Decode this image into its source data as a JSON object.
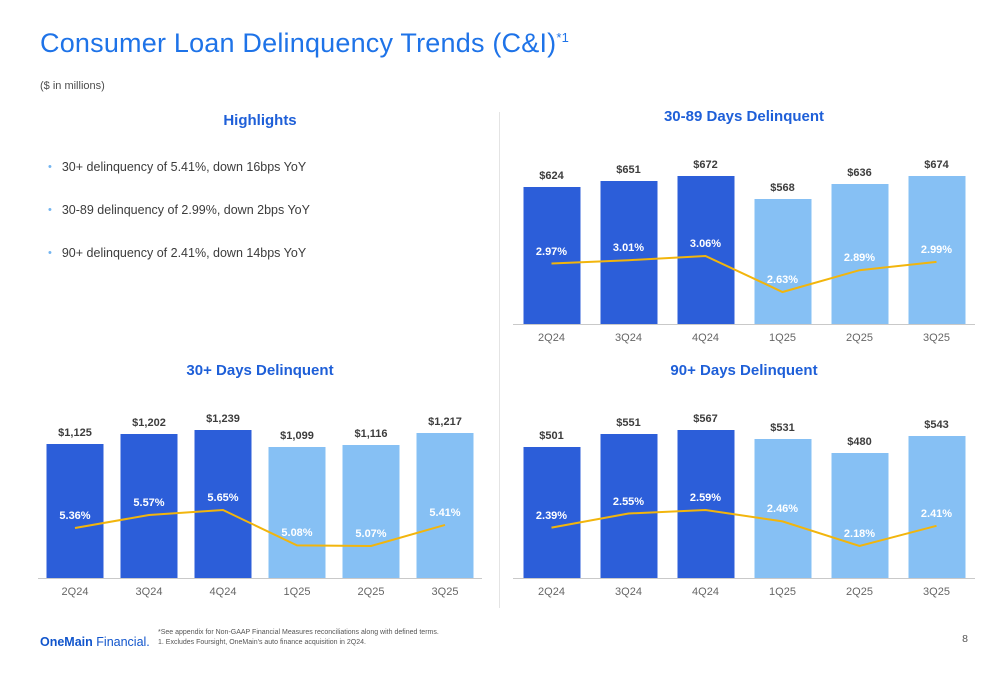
{
  "slide": {
    "title": "Consumer Loan Delinquency Trends (C&I)",
    "title_superscript": "*1",
    "subtitle": "($ in millions)",
    "page_number": "8"
  },
  "highlights": {
    "title": "Highlights",
    "bullets": [
      "30+ delinquency of 5.41%, down 16bps YoY",
      "30-89 delinquency of 2.99%, down 2bps YoY",
      "90+ delinquency of 2.41%, down 14bps YoY"
    ]
  },
  "footer": {
    "logo_text_bold": "OneMain",
    "logo_text_regular": "Financial.",
    "footnotes": [
      "*See appendix for Non-GAAP Financial Measures reconciliations along with defined terms.",
      "1. Excludes Foursight, OneMain's auto finance acquisition in 2Q24."
    ]
  },
  "colors": {
    "title_blue": "#1E73E8",
    "chart_title_blue": "#1E5FD8",
    "bar_dark_blue": "#2C5ED9",
    "bar_light_blue": "#86C0F4",
    "line_yellow": "#F2B50C",
    "bullet_dot_blue": "#74B5F0",
    "logo_blue": "#1155CC"
  },
  "chart_data": [
    {
      "type": "bar",
      "title": "30-89 Days Delinquent",
      "categories": [
        "2Q24",
        "3Q24",
        "4Q24",
        "1Q25",
        "2Q25",
        "3Q25"
      ],
      "bar_styles": [
        "dark",
        "dark",
        "dark",
        "light",
        "light",
        "light"
      ],
      "series": [
        {
          "name": "30-89 days delinquent balance ($ in millions)",
          "values": [
            624,
            651,
            672,
            568,
            636,
            674
          ],
          "labels": [
            "$624",
            "$651",
            "$672",
            "$568",
            "$636",
            "$674"
          ]
        },
        {
          "name": "30-89 days delinquency ratio (%)",
          "values": [
            2.97,
            3.01,
            3.06,
            2.63,
            2.89,
            2.99
          ],
          "labels": [
            "2.97%",
            "3.01%",
            "3.06%",
            "2.63%",
            "2.89%",
            "2.99%"
          ]
        }
      ],
      "legend": "none",
      "grid": false
    },
    {
      "type": "bar",
      "title": "30+ Days Delinquent",
      "categories": [
        "2Q24",
        "3Q24",
        "4Q24",
        "1Q25",
        "2Q25",
        "3Q25"
      ],
      "bar_styles": [
        "dark",
        "dark",
        "dark",
        "light",
        "light",
        "light"
      ],
      "series": [
        {
          "name": "30+ days delinquent balance ($ in millions)",
          "values": [
            1125,
            1202,
            1239,
            1099,
            1116,
            1217
          ],
          "labels": [
            "$1,125",
            "$1,202",
            "$1,239",
            "$1,099",
            "$1,116",
            "$1,217"
          ]
        },
        {
          "name": "30+ days delinquency ratio (%)",
          "values": [
            5.36,
            5.57,
            5.65,
            5.08,
            5.07,
            5.41
          ],
          "labels": [
            "5.36%",
            "5.57%",
            "5.65%",
            "5.08%",
            "5.07%",
            "5.41%"
          ]
        }
      ],
      "legend": "none",
      "grid": false
    },
    {
      "type": "bar",
      "title": "90+ Days Delinquent",
      "categories": [
        "2Q24",
        "3Q24",
        "4Q24",
        "1Q25",
        "2Q25",
        "3Q25"
      ],
      "bar_styles": [
        "dark",
        "dark",
        "dark",
        "light",
        "light",
        "light"
      ],
      "series": [
        {
          "name": "90+ days delinquent balance ($ in millions)",
          "values": [
            501,
            551,
            567,
            531,
            480,
            543
          ],
          "labels": [
            "$501",
            "$551",
            "$567",
            "$531",
            "$480",
            "$543"
          ]
        },
        {
          "name": "90+ days delinquency ratio (%)",
          "values": [
            2.39,
            2.55,
            2.59,
            2.46,
            2.18,
            2.41
          ],
          "labels": [
            "2.39%",
            "2.55%",
            "2.59%",
            "2.46%",
            "2.18%",
            "2.41%"
          ]
        }
      ],
      "legend": "none",
      "grid": false
    }
  ]
}
